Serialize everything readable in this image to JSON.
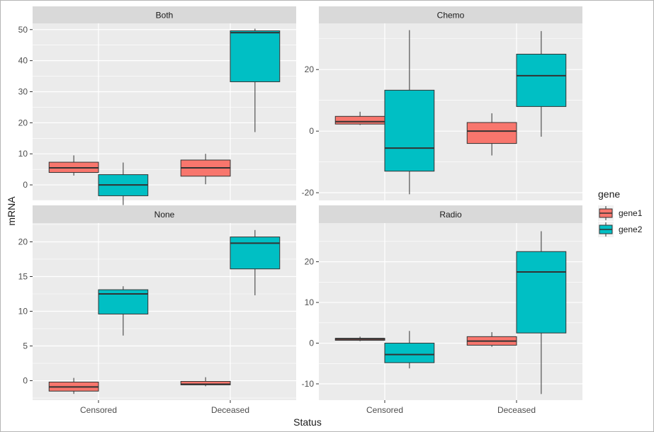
{
  "chart_data": {
    "type": "boxplot",
    "xlabel": "Status",
    "ylabel": "mRNA",
    "categories": [
      "Censored",
      "Deceased"
    ],
    "legend": {
      "title": "gene",
      "placement": "right",
      "entries": [
        {
          "name": "gene1",
          "color": "#F8766D"
        },
        {
          "name": "gene2",
          "color": "#00BFC4"
        }
      ]
    },
    "colors": {
      "panel_bg": "#EBEBEB",
      "strip_bg": "#D9D9D9",
      "grid": "#ffffff",
      "box_outline": "#333333",
      "tick_text": "#4D4D4D",
      "title_text": "#1A1A1A"
    },
    "facets": [
      {
        "name": "Both",
        "ylim": [
          -5,
          52
        ],
        "yticks": [
          0,
          10,
          20,
          30,
          40,
          50
        ],
        "boxes": [
          {
            "category": "Censored",
            "gene": "gene1",
            "min": 3,
            "q1": 4,
            "median": 5.5,
            "q3": 7.3,
            "max": 9.5
          },
          {
            "category": "Censored",
            "gene": "gene2",
            "min": -6.5,
            "q1": -3.5,
            "median": 0,
            "q3": 3.3,
            "max": 7.2
          },
          {
            "category": "Deceased",
            "gene": "gene1",
            "min": 0.2,
            "q1": 2.8,
            "median": 5.5,
            "q3": 8,
            "max": 10
          },
          {
            "category": "Deceased",
            "gene": "gene2",
            "min": 17,
            "q1": 33.2,
            "median": 49,
            "q3": 49.6,
            "max": 50.3
          }
        ]
      },
      {
        "name": "Chemo",
        "ylim": [
          -22.5,
          35
        ],
        "yticks": [
          -20,
          0,
          20
        ],
        "boxes": [
          {
            "category": "Censored",
            "gene": "gene1",
            "min": 2,
            "q1": 2.3,
            "median": 3.1,
            "q3": 4.8,
            "max": 6.3
          },
          {
            "category": "Censored",
            "gene": "gene2",
            "min": -20.5,
            "q1": -13,
            "median": -5.5,
            "q3": 13.3,
            "max": 32.8
          },
          {
            "category": "Deceased",
            "gene": "gene1",
            "min": -7.9,
            "q1": -4,
            "median": 0,
            "q3": 2.8,
            "max": 5.8
          },
          {
            "category": "Deceased",
            "gene": "gene2",
            "min": -1.8,
            "q1": 8,
            "median": 18,
            "q3": 25,
            "max": 32.5
          }
        ]
      },
      {
        "name": "None",
        "ylim": [
          -2.8,
          22.7
        ],
        "yticks": [
          0,
          5,
          10,
          15,
          20
        ],
        "boxes": [
          {
            "category": "Censored",
            "gene": "gene1",
            "min": -1.9,
            "q1": -1.5,
            "median": -0.9,
            "q3": -0.2,
            "max": 0.4
          },
          {
            "category": "Censored",
            "gene": "gene2",
            "min": 6.5,
            "q1": 9.6,
            "median": 12.5,
            "q3": 13.1,
            "max": 13.6
          },
          {
            "category": "Deceased",
            "gene": "gene1",
            "min": -0.8,
            "q1": -0.6,
            "median": -0.5,
            "q3": -0.1,
            "max": 0.5
          },
          {
            "category": "Deceased",
            "gene": "gene2",
            "min": 12.3,
            "q1": 16.1,
            "median": 19.8,
            "q3": 20.7,
            "max": 21.7
          }
        ]
      },
      {
        "name": "Radio",
        "ylim": [
          -14,
          29.5
        ],
        "yticks": [
          -10,
          0,
          10,
          20
        ],
        "boxes": [
          {
            "category": "Censored",
            "gene": "gene1",
            "min": 0.5,
            "q1": 0.7,
            "median": 1,
            "q3": 1.2,
            "max": 1.6
          },
          {
            "category": "Censored",
            "gene": "gene2",
            "min": -6.2,
            "q1": -4.8,
            "median": -2.8,
            "q3": 0,
            "max": 3
          },
          {
            "category": "Deceased",
            "gene": "gene1",
            "min": -0.9,
            "q1": -0.5,
            "median": 0.5,
            "q3": 1.6,
            "max": 2.7
          },
          {
            "category": "Deceased",
            "gene": "gene2",
            "min": -12.5,
            "q1": 2.5,
            "median": 17.5,
            "q3": 22.5,
            "max": 27.5
          }
        ]
      }
    ]
  }
}
